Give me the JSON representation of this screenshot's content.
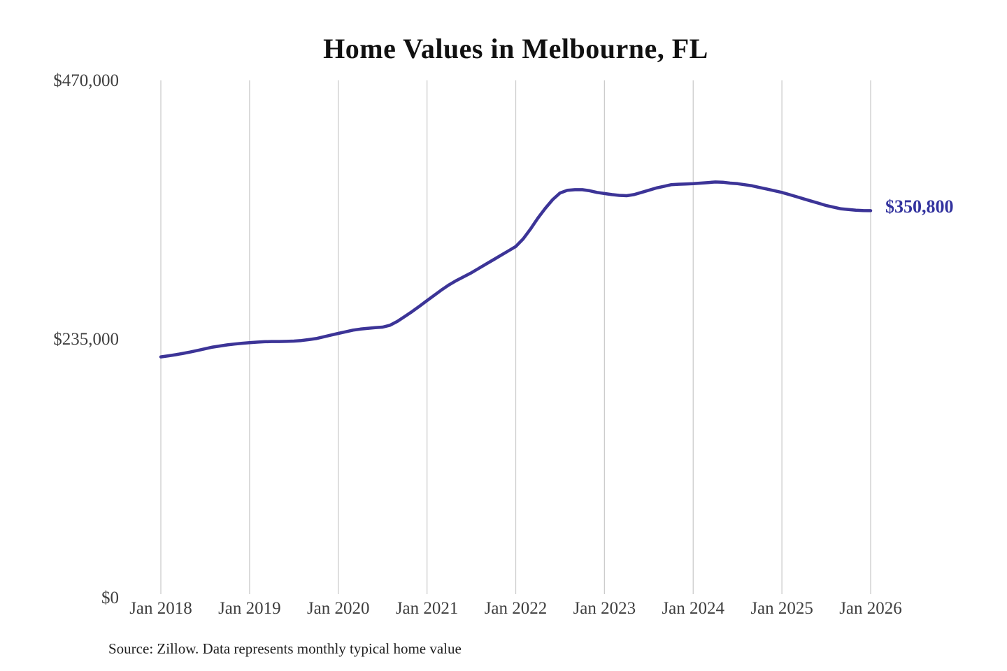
{
  "title": "Home Values in Melbourne, FL",
  "end_label": "$350,800",
  "source_note": "Source: Zillow. Data represents monthly typical home value",
  "colors": {
    "line": "#3c3497",
    "end_label": "#32329e",
    "grid": "#cccccc",
    "axis_text": "#3f3f3f",
    "title_text": "#111111",
    "background": "#ffffff"
  },
  "chart_data": {
    "type": "line",
    "title": "Home Values in Melbourne, FL",
    "xlabel": "",
    "ylabel": "",
    "x_tick_labels": [
      "Jan 2018",
      "Jan 2019",
      "Jan 2020",
      "Jan 2021",
      "Jan 2022",
      "Jan 2023",
      "Jan 2024",
      "Jan 2025",
      "Jan 2026"
    ],
    "y_tick_labels": [
      "$470,000",
      "$235,000",
      "$0"
    ],
    "ylim": [
      0,
      470000
    ],
    "grid": "vertical-only",
    "legend": "none",
    "end_value": 350800,
    "series": [
      {
        "name": "Monthly typical home value (USD)",
        "interval": "monthly",
        "x_start": "2018-01",
        "x_end": "2026-01",
        "values": [
          217000,
          218000,
          219000,
          220200,
          221500,
          223000,
          224500,
          226000,
          227000,
          228000,
          228800,
          229500,
          230000,
          230500,
          230900,
          231100,
          231100,
          231200,
          231500,
          232000,
          232800,
          233800,
          235400,
          237000,
          238500,
          240000,
          241500,
          242500,
          243200,
          243800,
          244300,
          246000,
          249500,
          254000,
          258600,
          263500,
          268500,
          273500,
          278500,
          283000,
          287000,
          290500,
          294000,
          298000,
          302000,
          306000,
          310000,
          314000,
          318000,
          325000,
          334000,
          344000,
          353000,
          361000,
          367000,
          369500,
          370000,
          370000,
          369000,
          367500,
          366500,
          365500,
          364800,
          364500,
          365500,
          367500,
          369500,
          371500,
          373000,
          374500,
          375000,
          375200,
          375500,
          376000,
          376500,
          377000,
          376800,
          376000,
          375500,
          374500,
          373500,
          372000,
          370500,
          369000,
          367500,
          365500,
          363500,
          361500,
          359500,
          357500,
          355500,
          354000,
          352500,
          351800,
          351200,
          350900,
          350800
        ]
      }
    ]
  }
}
